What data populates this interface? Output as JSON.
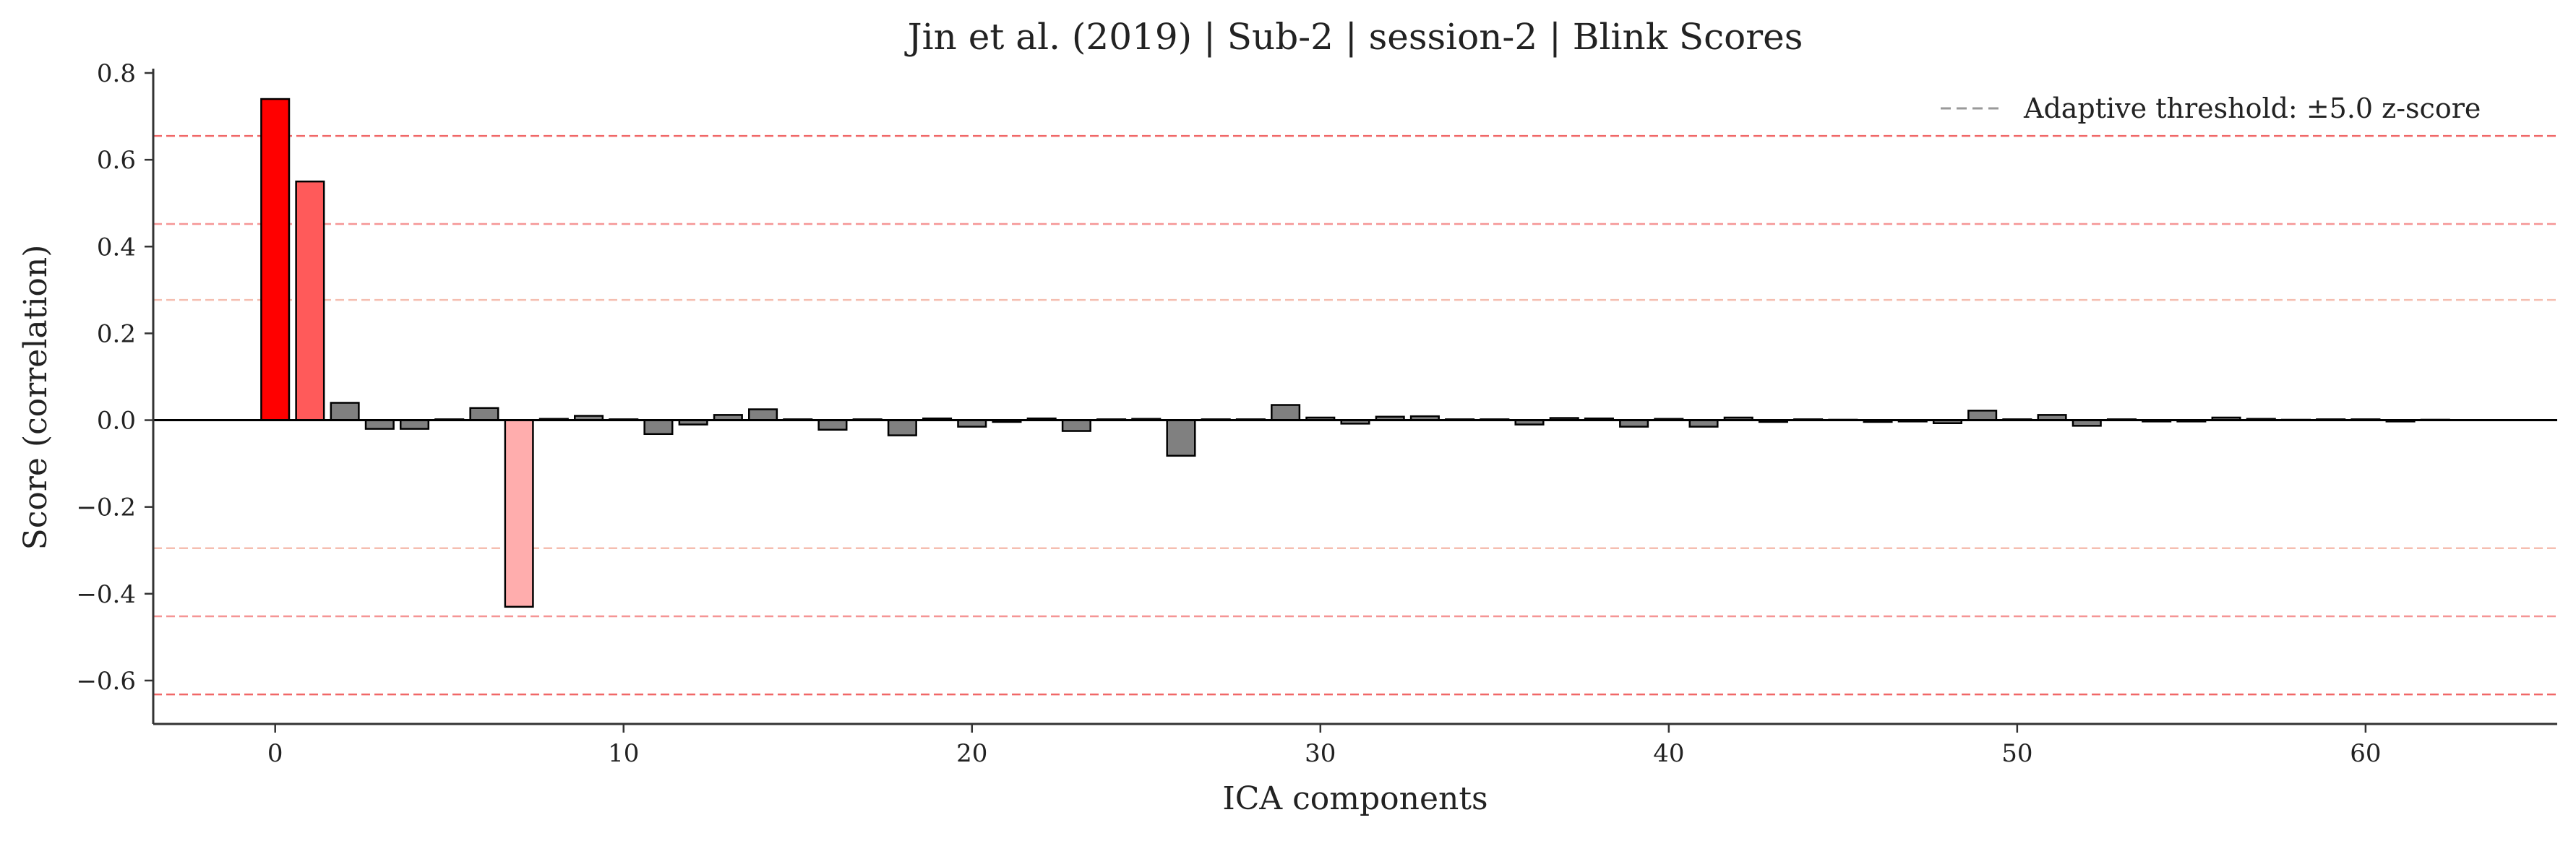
{
  "chart_data": {
    "type": "bar",
    "title": "Jin et al. (2019) | Sub-2 | session-2 | Blink Scores",
    "xlabel": "ICA components",
    "ylabel": "Score (correlation)",
    "xlim": [
      -3.5,
      65.5
    ],
    "ylim": [
      -0.7,
      0.81
    ],
    "xticks": [
      0,
      10,
      20,
      30,
      40,
      50,
      60
    ],
    "xtick_labels": [
      "0",
      "10",
      "20",
      "30",
      "40",
      "50",
      "60"
    ],
    "yticks": [
      -0.6,
      -0.4,
      -0.2,
      0.0,
      0.2,
      0.4,
      0.6,
      0.8
    ],
    "ytick_labels": [
      "−0.6",
      "−0.4",
      "−0.2",
      "0.0",
      "0.2",
      "0.4",
      "0.6",
      "0.8"
    ],
    "grid": false,
    "legend": {
      "position": "top-right",
      "entries": [
        {
          "label": "Adaptive threshold: ±5.0 z-score",
          "style": "dashed",
          "color": "#999999"
        }
      ]
    },
    "thresholds": [
      {
        "value": 0.655,
        "color": "#f06060",
        "opacity": 0.95
      },
      {
        "value": 0.452,
        "color": "#f48a8a",
        "opacity": 0.9
      },
      {
        "value": 0.277,
        "color": "#f5b8a8",
        "opacity": 0.9
      },
      {
        "value": -0.295,
        "color": "#f5b8a8",
        "opacity": 0.9
      },
      {
        "value": -0.452,
        "color": "#f48a8a",
        "opacity": 0.9
      },
      {
        "value": -0.632,
        "color": "#f06060",
        "opacity": 0.95
      }
    ],
    "highlight_colors": {
      "0": "#ff0000",
      "1": "#ff5a5a",
      "7": "#ffadad"
    },
    "default_bar_color": "#808080",
    "series": [
      {
        "x": [
          0,
          1,
          2,
          3,
          4,
          5,
          6,
          7,
          8,
          9,
          10,
          11,
          12,
          13,
          14,
          15,
          16,
          17,
          18,
          19,
          20,
          21,
          22,
          23,
          24,
          25,
          26,
          27,
          28,
          29,
          30,
          31,
          32,
          33,
          34,
          35,
          36,
          37,
          38,
          39,
          40,
          41,
          42,
          43,
          44,
          45,
          46,
          47,
          48,
          49,
          50,
          51,
          52,
          53,
          54,
          55,
          56,
          57,
          58,
          59,
          60,
          61,
          62
        ],
        "values": [
          0.74,
          0.55,
          0.04,
          -0.02,
          -0.02,
          0.002,
          0.028,
          -0.43,
          0.003,
          0.01,
          0.002,
          -0.032,
          -0.01,
          0.012,
          0.025,
          0.002,
          -0.022,
          0.002,
          -0.035,
          0.004,
          -0.015,
          -0.004,
          0.004,
          -0.025,
          0.002,
          0.003,
          -0.082,
          0.002,
          0.002,
          0.035,
          0.006,
          -0.008,
          0.008,
          0.009,
          0.002,
          0.002,
          -0.01,
          0.005,
          0.004,
          -0.015,
          0.003,
          -0.015,
          0.006,
          -0.004,
          0.002,
          0.001,
          -0.004,
          -0.003,
          -0.007,
          0.022,
          0.002,
          0.012,
          -0.013,
          0.002,
          -0.003,
          -0.003,
          0.006,
          0.003,
          0.001,
          0.002,
          0.002,
          -0.003,
          0.001
        ]
      }
    ]
  }
}
